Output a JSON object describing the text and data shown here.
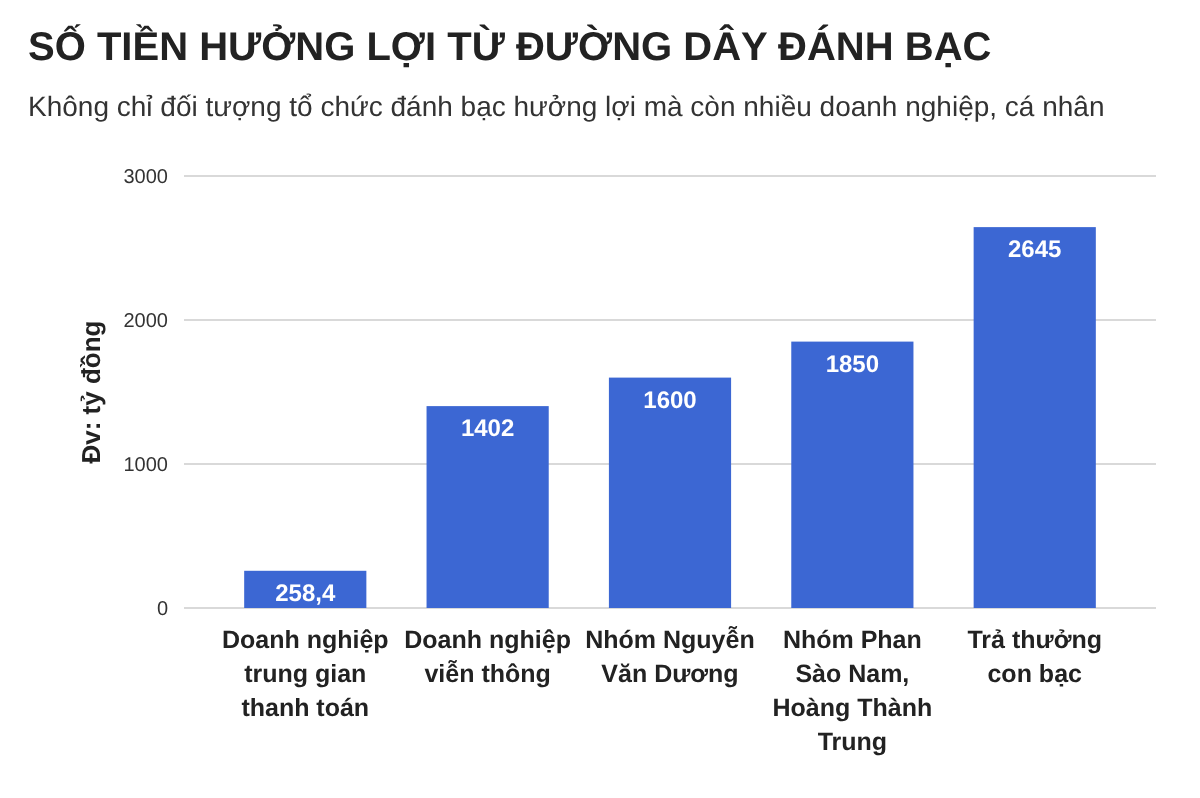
{
  "chart_data": {
    "type": "bar",
    "title": "SỐ TIỀN HƯỞNG LỢI TỪ ĐƯỜNG DÂY ĐÁNH BẠC",
    "subtitle": "Không chỉ đối tượng tổ chức đánh bạc hưởng lợi mà còn nhiều doanh nghiệp, cá nhân",
    "ylabel": "Đv: tỷ đồng",
    "categories": [
      "Doanh nghiệp trung gian thanh toán",
      "Doanh nghiệp viễn thông",
      "Nhóm Nguyễn Văn Dương",
      "Nhóm Phan Sào Nam, Hoàng Thành Trung",
      "Trả thưởng con bạc"
    ],
    "values": [
      258.4,
      1402,
      1600,
      1850,
      2645
    ],
    "value_labels": [
      "258,4",
      "1402",
      "1600",
      "1850",
      "2645"
    ],
    "color": "#3c67d3",
    "ylim": [
      0,
      3000
    ],
    "yticks": [
      0,
      1000,
      2000,
      3000
    ],
    "grid": "y"
  }
}
